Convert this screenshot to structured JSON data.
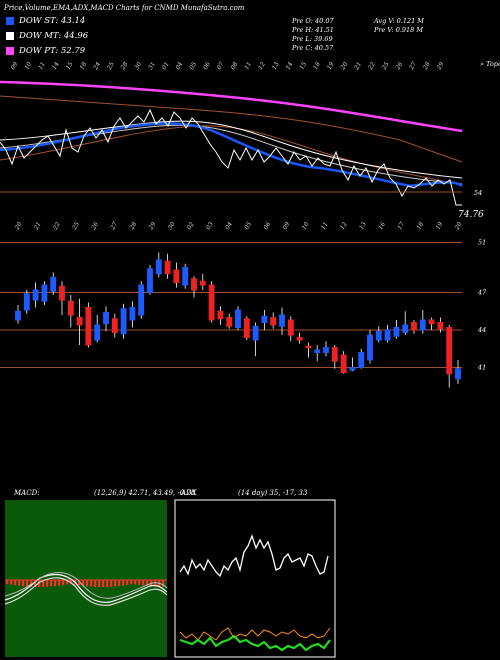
{
  "header": {
    "title": "Price,Volume,EMA,ADX,MACD Charts for CNMD MunafaSutra.com"
  },
  "legend": [
    {
      "label": "DOW ST: 43.14",
      "color": "#1a57ff"
    },
    {
      "label": "DOW MT: 44.96",
      "color": "#ffffff"
    },
    {
      "label": "DOW PT: 52.79",
      "color": "#ff44ff"
    }
  ],
  "stats": {
    "col1": [
      "Pre O: 40.07",
      "Pre H: 41.51",
      "Pre L: 39.69",
      "Pre C: 40.57"
    ],
    "col2": [
      "Avg V: 0.121 M",
      "Pre V: 0.918 M"
    ]
  },
  "upper_chart": {
    "top_right_label": "» Topa",
    "price_tag": "74.76",
    "right_value_label": "54",
    "dates": [
      "09",
      "10",
      "11",
      "14",
      "15",
      "18",
      "24",
      "25",
      "28",
      "30",
      "31",
      "01",
      "04",
      "05",
      "06",
      "07",
      "08",
      "11",
      "12",
      "13",
      "14",
      "15",
      "18",
      "19",
      "20",
      "21",
      "22",
      "25",
      "26",
      "27",
      "28",
      "29"
    ]
  },
  "lower_chart": {
    "dates": [
      "20",
      "21",
      "22",
      "25",
      "26",
      "27",
      "28",
      "29",
      "30",
      "02",
      "03",
      "04",
      "05",
      "06",
      "09",
      "10",
      "11",
      "12",
      "13",
      "16",
      "17",
      "18",
      "19",
      "20"
    ],
    "price_levels": [
      "51",
      "47",
      "44",
      "41"
    ]
  },
  "macd_panel": {
    "label": "MACD:",
    "values": "(12,26,9) 42.71, 43.49, -0.78"
  },
  "adx_panel": {
    "label": "ADX",
    "values": "(14 day) 35, -17, 33"
  },
  "chart_data": {
    "type": "candlestick",
    "levels": [
      51,
      47,
      44,
      41
    ],
    "candles": [
      {
        "o": 44.8,
        "c": 45.5,
        "h": 46.0,
        "l": 44.5
      },
      {
        "o": 45.6,
        "c": 46.9,
        "h": 47.2,
        "l": 45.3
      },
      {
        "o": 46.4,
        "c": 47.2,
        "h": 47.8,
        "l": 45.8
      },
      {
        "o": 46.3,
        "c": 47.6,
        "h": 47.9,
        "l": 46.0
      },
      {
        "o": 47.1,
        "c": 48.2,
        "h": 48.6,
        "l": 46.8
      },
      {
        "o": 47.5,
        "c": 46.4,
        "h": 47.9,
        "l": 45.2
      },
      {
        "o": 46.3,
        "c": 45.2,
        "h": 46.8,
        "l": 44.2
      },
      {
        "o": 45.0,
        "c": 44.4,
        "h": 46.5,
        "l": 42.8
      },
      {
        "o": 45.8,
        "c": 42.8,
        "h": 46.2,
        "l": 42.6
      },
      {
        "o": 43.2,
        "c": 44.4,
        "h": 45.2,
        "l": 43.0
      },
      {
        "o": 44.5,
        "c": 45.4,
        "h": 45.9,
        "l": 43.9
      },
      {
        "o": 44.9,
        "c": 43.8,
        "h": 45.3,
        "l": 43.4
      },
      {
        "o": 43.7,
        "c": 45.7,
        "h": 46.1,
        "l": 43.3
      },
      {
        "o": 44.8,
        "c": 45.8,
        "h": 46.3,
        "l": 44.2
      },
      {
        "o": 45.2,
        "c": 47.6,
        "h": 47.9,
        "l": 44.9
      },
      {
        "o": 47.0,
        "c": 48.9,
        "h": 49.2,
        "l": 46.8
      },
      {
        "o": 48.5,
        "c": 49.6,
        "h": 50.2,
        "l": 48.2
      },
      {
        "o": 49.5,
        "c": 48.5,
        "h": 50.1,
        "l": 48.1
      },
      {
        "o": 48.8,
        "c": 47.8,
        "h": 49.4,
        "l": 47.4
      },
      {
        "o": 47.6,
        "c": 49.0,
        "h": 49.3,
        "l": 47.3
      },
      {
        "o": 48.1,
        "c": 47.2,
        "h": 48.3,
        "l": 46.6
      },
      {
        "o": 47.9,
        "c": 47.6,
        "h": 48.5,
        "l": 47.2
      },
      {
        "o": 47.6,
        "c": 44.8,
        "h": 47.9,
        "l": 44.6
      },
      {
        "o": 45.5,
        "c": 44.9,
        "h": 45.9,
        "l": 44.4
      },
      {
        "o": 45.0,
        "c": 44.3,
        "h": 45.3,
        "l": 44.1
      },
      {
        "o": 44.2,
        "c": 45.6,
        "h": 45.9,
        "l": 44.0
      },
      {
        "o": 44.9,
        "c": 43.4,
        "h": 45.1,
        "l": 43.2
      },
      {
        "o": 43.2,
        "c": 44.3,
        "h": 44.6,
        "l": 41.9
      },
      {
        "o": 44.6,
        "c": 45.1,
        "h": 45.6,
        "l": 44.0
      },
      {
        "o": 45.0,
        "c": 44.4,
        "h": 45.4,
        "l": 44.1
      },
      {
        "o": 44.3,
        "c": 45.2,
        "h": 45.8,
        "l": 43.6
      },
      {
        "o": 44.8,
        "c": 43.6,
        "h": 45.1,
        "l": 43.1
      },
      {
        "o": 43.4,
        "c": 43.2,
        "h": 43.8,
        "l": 42.9
      },
      {
        "o": 42.7,
        "c": 42.6,
        "h": 43.0,
        "l": 41.8
      },
      {
        "o": 42.2,
        "c": 42.4,
        "h": 42.8,
        "l": 41.5
      },
      {
        "o": 42.2,
        "c": 42.6,
        "h": 43.1,
        "l": 41.9
      },
      {
        "o": 42.6,
        "c": 41.5,
        "h": 42.8,
        "l": 40.9
      },
      {
        "o": 42.0,
        "c": 40.6,
        "h": 42.3,
        "l": 40.5
      },
      {
        "o": 40.8,
        "c": 41.0,
        "h": 41.8,
        "l": 40.7
      },
      {
        "o": 41.0,
        "c": 42.2,
        "h": 42.5,
        "l": 40.9
      },
      {
        "o": 41.6,
        "c": 43.6,
        "h": 44.0,
        "l": 41.3
      },
      {
        "o": 43.2,
        "c": 43.9,
        "h": 44.3,
        "l": 43.0
      },
      {
        "o": 43.2,
        "c": 44.0,
        "h": 44.4,
        "l": 43.0
      },
      {
        "o": 43.5,
        "c": 44.2,
        "h": 44.8,
        "l": 43.3
      },
      {
        "o": 43.8,
        "c": 44.4,
        "h": 45.5,
        "l": 43.6
      },
      {
        "o": 44.6,
        "c": 44.0,
        "h": 44.8,
        "l": 43.7
      },
      {
        "o": 44.0,
        "c": 44.8,
        "h": 45.6,
        "l": 43.7
      },
      {
        "o": 44.8,
        "c": 44.5,
        "h": 45.0,
        "l": 44.0
      },
      {
        "o": 44.6,
        "c": 44.1,
        "h": 45.0,
        "l": 43.8
      },
      {
        "o": 44.2,
        "c": 40.5,
        "h": 44.4,
        "l": 39.4
      },
      {
        "o": 40.1,
        "c": 40.9,
        "h": 41.6,
        "l": 39.7
      }
    ]
  }
}
